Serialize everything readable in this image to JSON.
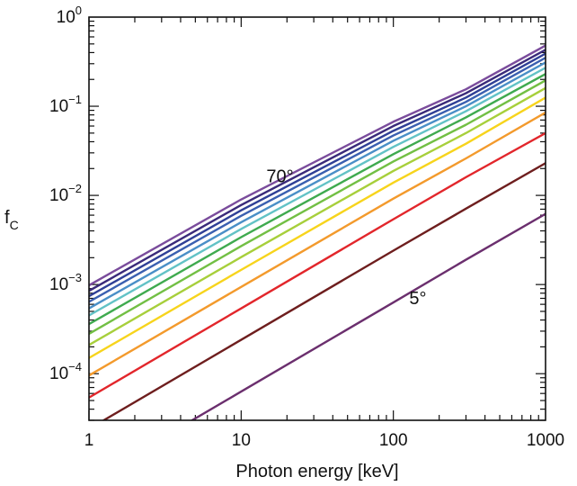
{
  "chart_data": {
    "type": "line",
    "title": "",
    "xlabel": "Photon energy [keV]",
    "ylabel": "f",
    "ylabel_subscript": "C",
    "x_scale": "log",
    "y_scale": "log",
    "xlim": [
      1,
      1000
    ],
    "ylim": [
      3e-05,
      1
    ],
    "x_ticks": [
      {
        "value": 1,
        "label": "1"
      },
      {
        "value": 10,
        "label": "10"
      },
      {
        "value": 100,
        "label": "100"
      },
      {
        "value": 1000,
        "label": "1000"
      }
    ],
    "y_ticks": [
      {
        "value": 0.0001,
        "base": "10",
        "exp": "−4"
      },
      {
        "value": 0.001,
        "base": "10",
        "exp": "−3"
      },
      {
        "value": 0.01,
        "base": "10",
        "exp": "−2"
      },
      {
        "value": 0.1,
        "base": "10",
        "exp": "−1"
      },
      {
        "value": 1,
        "base": "10",
        "exp": "0"
      }
    ],
    "grid": false,
    "annotations": [
      {
        "text": "70°",
        "x": 18,
        "y": 0.014
      },
      {
        "text": "5°",
        "x": 145,
        "y": 0.0006
      }
    ],
    "series": [
      {
        "color": "#6b2f6e",
        "x": [
          1,
          10,
          100,
          300,
          1000
        ],
        "y": [
          6.3e-06,
          6.3e-05,
          0.00063,
          0.0019,
          0.0062
        ]
      },
      {
        "color": "#6e1e1e",
        "x": [
          1,
          10,
          100,
          300,
          1000
        ],
        "y": [
          2.4e-05,
          0.00024,
          0.0024,
          0.0071,
          0.023
        ]
      },
      {
        "color": "#e2262b",
        "x": [
          1,
          10,
          100,
          300,
          1000
        ],
        "y": [
          5.4e-05,
          0.00054,
          0.0054,
          0.016,
          0.05
        ]
      },
      {
        "color": "#f39a2c",
        "x": [
          1,
          10,
          100,
          300,
          1000
        ],
        "y": [
          9.55e-05,
          0.00094,
          0.0092,
          0.026,
          0.085
        ]
      },
      {
        "color": "#f7d41c",
        "x": [
          1,
          10,
          100,
          300,
          1000
        ],
        "y": [
          0.00015,
          0.00146,
          0.0139,
          0.038,
          0.125
        ]
      },
      {
        "color": "#a7cf3b",
        "x": [
          1,
          10,
          100,
          300,
          1000
        ],
        "y": [
          0.00021,
          0.00203,
          0.0188,
          0.05,
          0.16
        ]
      },
      {
        "color": "#72bf44",
        "x": [
          1,
          10,
          100,
          300,
          1000
        ],
        "y": [
          0.00028,
          0.0027,
          0.024,
          0.062,
          0.195
        ]
      },
      {
        "color": "#3faa4f",
        "x": [
          1,
          10,
          100,
          300,
          1000
        ],
        "y": [
          0.00036,
          0.0034,
          0.029,
          0.075,
          0.23
        ]
      },
      {
        "color": "#62c2c6",
        "x": [
          1,
          10,
          100,
          300,
          1000
        ],
        "y": [
          0.00045,
          0.0042,
          0.035,
          0.088,
          0.27
        ]
      },
      {
        "color": "#4a8fc7",
        "x": [
          1,
          10,
          100,
          300,
          1000
        ],
        "y": [
          0.00054,
          0.005,
          0.041,
          0.1,
          0.31
        ]
      },
      {
        "color": "#3a5fb0",
        "x": [
          1,
          10,
          100,
          300,
          1000
        ],
        "y": [
          0.00064,
          0.0059,
          0.047,
          0.112,
          0.35
        ]
      },
      {
        "color": "#2f3f96",
        "x": [
          1,
          10,
          100,
          300,
          1000
        ],
        "y": [
          0.00074,
          0.0068,
          0.053,
          0.125,
          0.39
        ]
      },
      {
        "color": "#3a2a7a",
        "x": [
          1,
          10,
          100,
          300,
          1000
        ],
        "y": [
          0.00085,
          0.0078,
          0.06,
          0.14,
          0.43
        ]
      },
      {
        "color": "#7a4c9c",
        "x": [
          1,
          10,
          100,
          300,
          1000
        ],
        "y": [
          0.00098,
          0.009,
          0.067,
          0.155,
          0.48
        ]
      }
    ]
  }
}
